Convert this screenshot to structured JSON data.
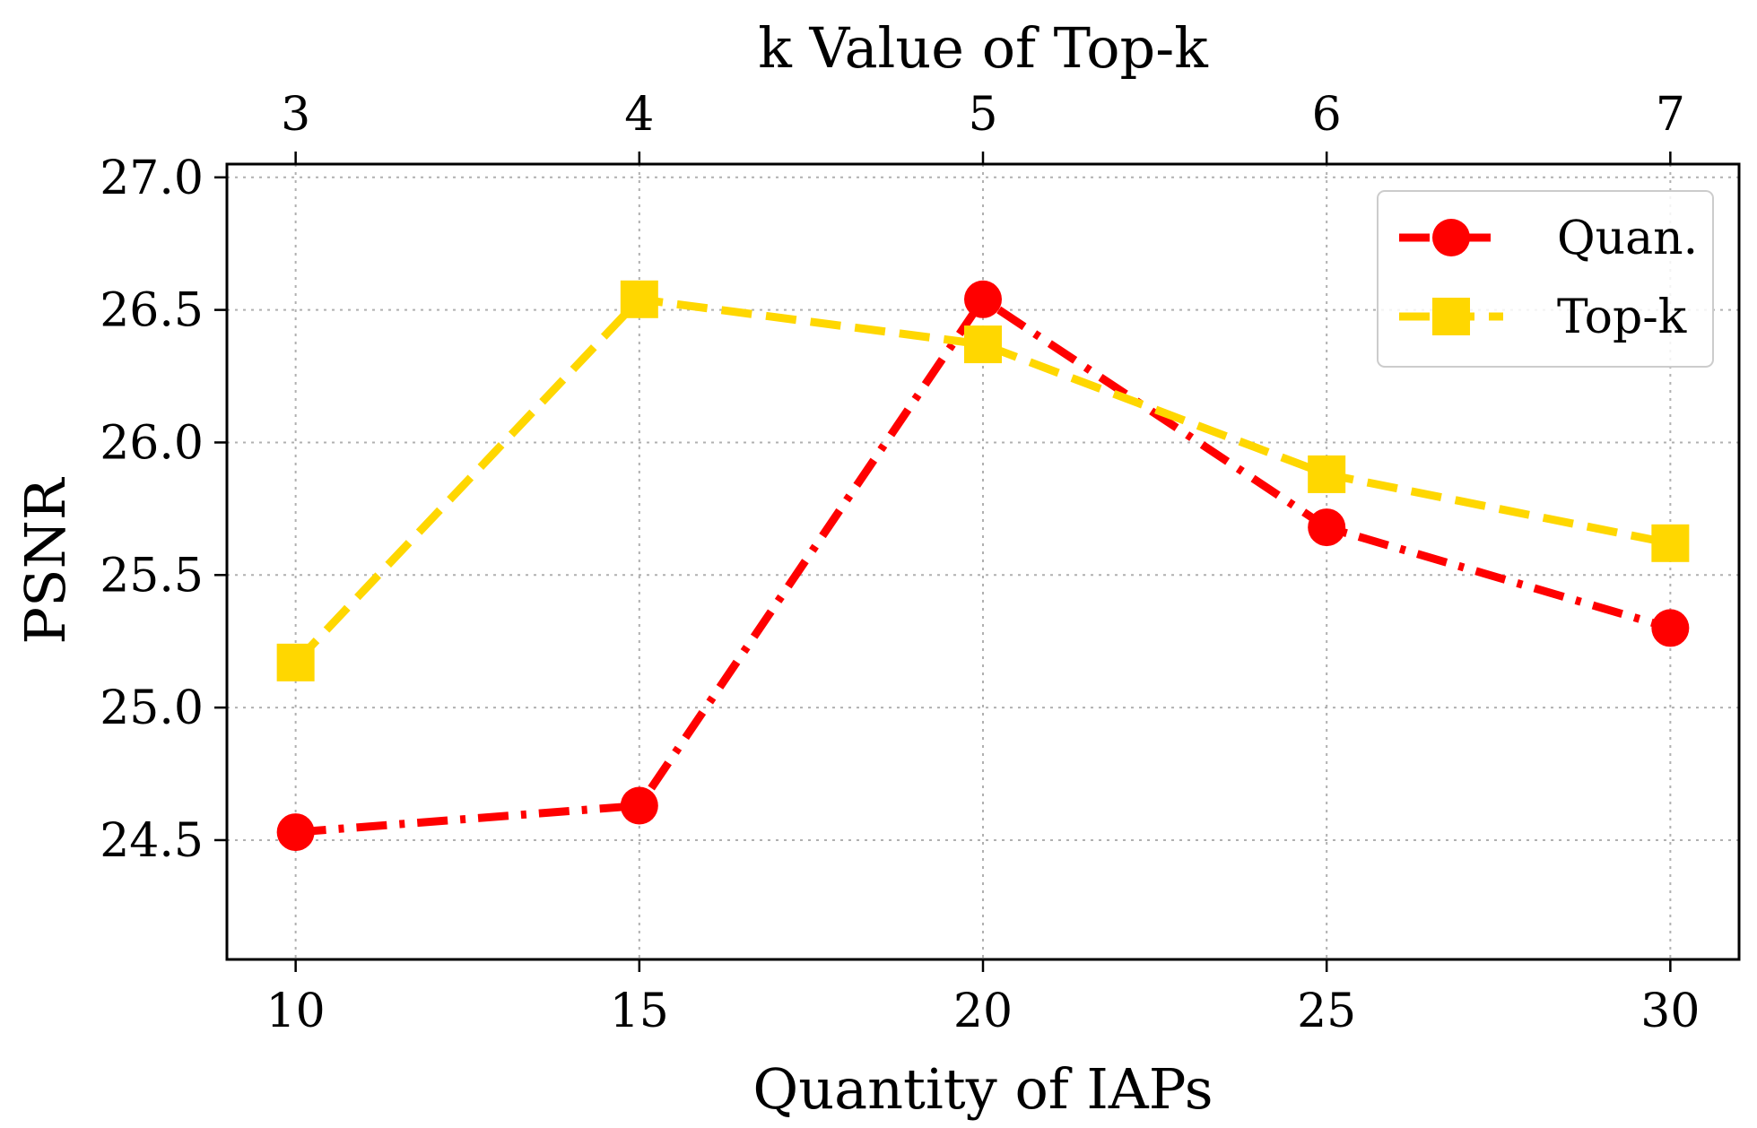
{
  "chart_data": {
    "type": "line",
    "x": [
      10,
      15,
      20,
      25,
      30
    ],
    "x_top": [
      3,
      4,
      5,
      6,
      7
    ],
    "xlabel": "Quantity of IAPs",
    "xlabel_top": "k Value of Top-k",
    "ylabel": "PSNR",
    "xlim": [
      9,
      31
    ],
    "ylim": [
      24.05,
      27.05
    ],
    "yticks": [
      "24.5",
      "25.0",
      "25.5",
      "26.0",
      "26.5",
      "27.0"
    ],
    "xticks": [
      "10",
      "15",
      "20",
      "25",
      "30"
    ],
    "xticks_top": [
      "3",
      "4",
      "5",
      "6",
      "7"
    ],
    "grid": true,
    "legend_position": "top-right",
    "series": [
      {
        "name": "Quan.",
        "values": [
          24.53,
          24.63,
          26.54,
          25.68,
          25.3
        ],
        "color": "#ff0000",
        "line_style": "dash-dot",
        "marker": "circle"
      },
      {
        "name": "Top-k",
        "values": [
          25.17,
          26.54,
          26.37,
          25.88,
          25.62
        ],
        "color": "#ffd700",
        "line_style": "dashed",
        "marker": "square"
      }
    ]
  }
}
